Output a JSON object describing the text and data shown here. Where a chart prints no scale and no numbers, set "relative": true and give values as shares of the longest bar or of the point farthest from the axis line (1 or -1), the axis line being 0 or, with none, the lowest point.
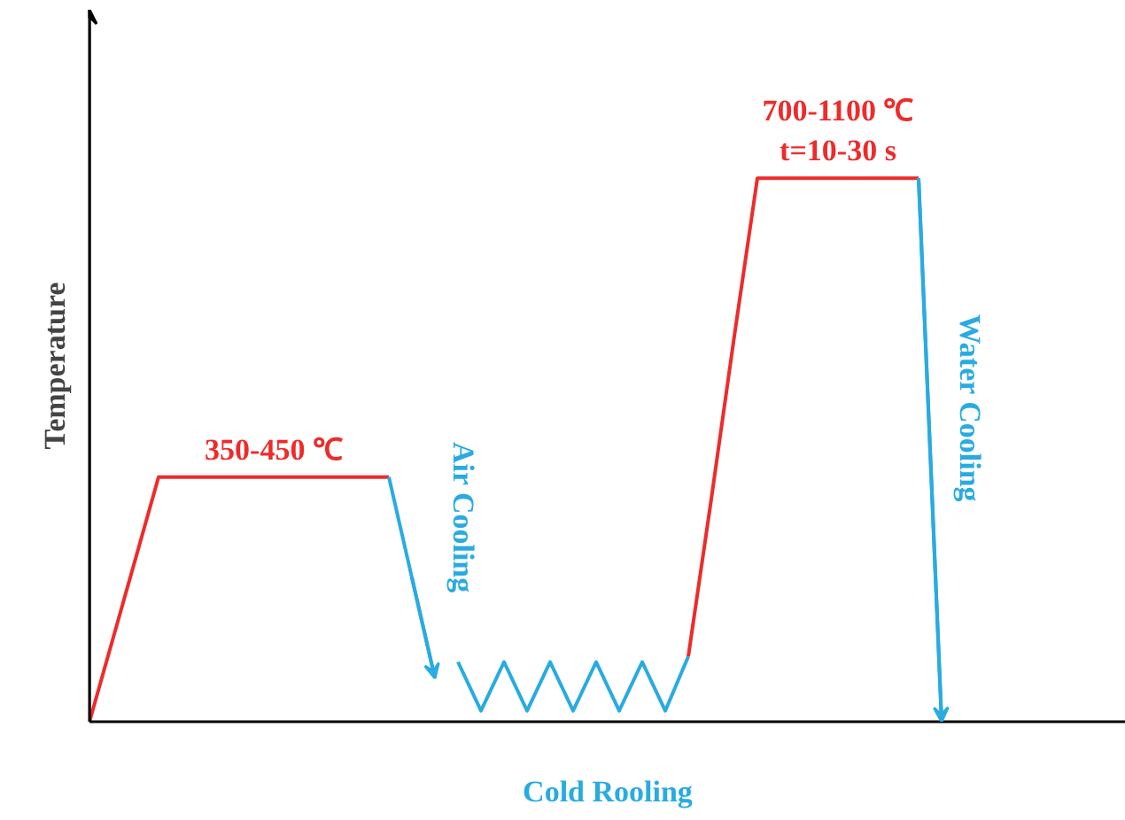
{
  "chart_data": {
    "type": "line",
    "relative": true,
    "xlabel": "Cold Rooling",
    "ylabel": "Temperature",
    "categories": [
      null,
      null,
      null,
      null,
      null,
      null,
      null,
      null,
      null,
      null,
      null,
      null,
      null,
      null,
      null,
      null,
      null,
      null,
      null,
      null,
      null,
      null,
      null,
      null,
      null,
      null,
      null,
      null,
      null,
      null,
      null,
      null,
      null,
      null,
      null,
      null,
      null,
      null,
      null,
      null,
      null,
      null,
      null,
      null,
      null,
      null
    ],
    "series": [
      {
        "name": "350-450 ℃",
        "color": "#ee2b2b",
        "values": [
          0,
          0.15,
          0.3,
          0.45,
          0.45,
          0.45,
          0.45,
          0.45,
          0.45,
          0.45,
          0.45,
          0.45,
          0.45,
          0.45,
          null,
          null,
          null,
          null,
          null,
          null,
          null,
          null,
          null,
          null,
          null,
          null,
          null,
          null,
          null,
          null,
          null,
          null,
          null,
          null,
          null,
          null,
          null,
          null,
          null,
          null,
          null,
          null,
          null,
          null,
          null,
          null
        ]
      },
      {
        "name": "Air Cooling",
        "color": "#29abe2",
        "values": [
          null,
          null,
          null,
          null,
          null,
          null,
          null,
          null,
          null,
          null,
          null,
          null,
          null,
          0.45,
          0.265,
          0.08,
          null,
          null,
          null,
          null,
          null,
          null,
          null,
          null,
          null,
          null,
          null,
          null,
          null,
          null,
          null,
          null,
          null,
          null,
          null,
          null,
          null,
          null,
          null,
          null,
          null,
          null,
          null,
          null,
          null,
          null
        ]
      },
      {
        "color": "#29abe2",
        "values": [
          null,
          null,
          null,
          null,
          null,
          null,
          null,
          null,
          null,
          null,
          null,
          null,
          null,
          null,
          null,
          null,
          0.11,
          0.02,
          0.11,
          0.02,
          0.11,
          0.02,
          0.11,
          0.02,
          0.11,
          0.02,
          0.12,
          null,
          null,
          null,
          null,
          null,
          null,
          null,
          null,
          null,
          null,
          null,
          null,
          null,
          null,
          null,
          null,
          null,
          null,
          null
        ]
      },
      {
        "name": "700-1100 ℃\nt=10-30 s",
        "color": "#ee2b2b",
        "values": [
          null,
          null,
          null,
          null,
          null,
          null,
          null,
          null,
          null,
          null,
          null,
          null,
          null,
          null,
          null,
          null,
          null,
          null,
          null,
          null,
          null,
          null,
          null,
          null,
          null,
          null,
          0.12,
          0.41,
          0.71,
          1,
          1,
          1,
          1,
          1,
          1,
          1,
          1,
          null,
          null,
          null,
          null,
          null,
          null,
          null,
          null,
          null
        ]
      },
      {
        "name": "Water Cooling",
        "color": "#29abe2",
        "values": [
          null,
          null,
          null,
          null,
          null,
          null,
          null,
          null,
          null,
          null,
          null,
          null,
          null,
          null,
          null,
          null,
          null,
          null,
          null,
          null,
          null,
          null,
          null,
          null,
          null,
          null,
          null,
          null,
          null,
          null,
          null,
          null,
          null,
          null,
          null,
          null,
          1,
          0,
          null,
          null,
          null,
          null,
          null,
          null,
          null,
          null
        ]
      }
    ]
  }
}
